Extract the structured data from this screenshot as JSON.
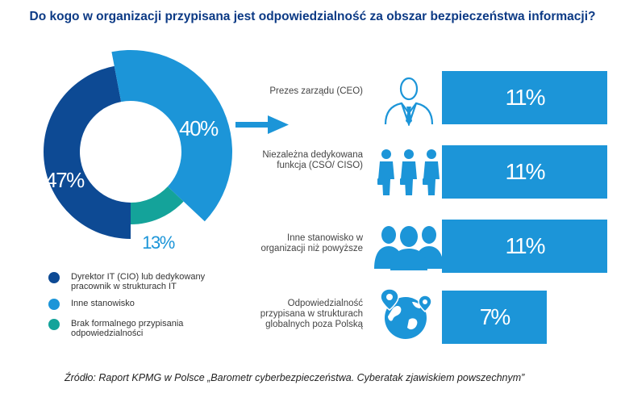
{
  "title": "Do kogo w organizacji przypisana jest odpowiedzialność za obszar bezpieczeństwa informacji?",
  "colors": {
    "dark_blue": "#0d4a94",
    "light_blue": "#1c95d8",
    "teal": "#14a39a",
    "bar_blue": "#1c95d8",
    "title_blue": "#0c3a85"
  },
  "chart_data": [
    {
      "type": "pie",
      "variant": "donut",
      "categories": [
        "Dyrektor IT (CIO) lub dedykowany pracownik w strukturach IT",
        "Inne stanowisko",
        "Brak formalnego przypisania odpowiedzialności"
      ],
      "values": [
        47,
        40,
        13
      ],
      "value_labels": [
        "47%",
        "40%",
        "13%"
      ],
      "title": "",
      "legend": "bottom-left"
    },
    {
      "type": "bar",
      "orientation": "horizontal",
      "categories": [
        "Prezes zarządu (CEO)",
        "Niezależna dedykowana funkcja (CSO/ CISO)",
        "Inne stanowisko w organizacji niż powyższe",
        "Odpowiedzialność przypisana w strukturach globalnych poza Polską"
      ],
      "values": [
        11,
        11,
        11,
        7
      ],
      "value_labels": [
        "11%",
        "11%",
        "11%",
        "7%"
      ],
      "xlim": [
        0,
        11
      ]
    }
  ],
  "legend": [
    {
      "label": "Dyrektor IT (CIO) lub dedykowany pracownik w strukturach IT"
    },
    {
      "label": "Inne stanowisko"
    },
    {
      "label": "Brak formalnego przypisania odpowiedzialności"
    }
  ],
  "rows": [
    {
      "label": "Prezes zarządu (CEO)",
      "value_label": "11%",
      "icon": "ceo-person-icon"
    },
    {
      "label": "Niezależna dedykowana funkcja (CSO/ CISO)",
      "value_label": "11%",
      "icon": "three-persons-icon"
    },
    {
      "label": "Inne stanowisko w organizacji niż powyższe",
      "value_label": "11%",
      "icon": "group-silhouette-icon"
    },
    {
      "label": "Odpowiedzialność przypisana w strukturach globalnych poza Polską",
      "value_label": "7%",
      "icon": "globe-pins-icon"
    }
  ],
  "source": "Źródło: Raport KPMG w Polsce „Barometr cyberbezpieczeństwa. Cyberatak zjawiskiem powszechnym”"
}
